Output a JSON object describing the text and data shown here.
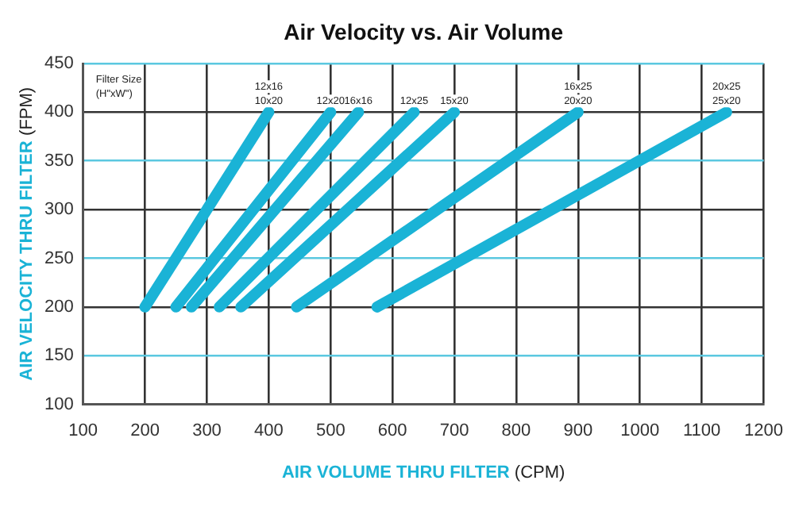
{
  "chart_data": {
    "type": "line",
    "title": "Air Velocity vs. Air Volume",
    "xlabel": "AIR VOLUME THRU FILTER (CPM)",
    "ylabel": "AIR VELOCITY THRU FILTER (FPM)",
    "xlim": [
      100,
      1200
    ],
    "xticks": [
      100,
      200,
      300,
      400,
      500,
      600,
      700,
      800,
      900,
      1000,
      1100,
      1200
    ],
    "ylim": [
      100,
      450
    ],
    "yticks": [
      100,
      150,
      200,
      250,
      300,
      350,
      400,
      450
    ],
    "grid": true,
    "legend": false,
    "marker": "none",
    "line_style": "solid",
    "annotations": [
      "Filter Size (H\"xW\")"
    ],
    "series": [
      {
        "name": "12x16 10x20",
        "color": "#1ab3d6",
        "x": [
          200,
          400
        ],
        "values": [
          200,
          400
        ]
      },
      {
        "name": "12x20",
        "color": "#1ab3d6",
        "x": [
          250,
          500
        ],
        "values": [
          200,
          400
        ]
      },
      {
        "name": "16x16",
        "color": "#1ab3d6",
        "x": [
          275,
          545
        ],
        "values": [
          200,
          400
        ]
      },
      {
        "name": "12x25",
        "color": "#1ab3d6",
        "x": [
          320,
          635
        ],
        "values": [
          200,
          400
        ]
      },
      {
        "name": "15x20",
        "color": "#1ab3d6",
        "x": [
          355,
          700
        ],
        "values": [
          200,
          400
        ]
      },
      {
        "name": "16x25 20x20",
        "color": "#1ab3d6",
        "x": [
          445,
          900
        ],
        "values": [
          200,
          400
        ]
      },
      {
        "name": "20x25 25x20",
        "color": "#1ab3d6",
        "x": [
          575,
          1140
        ],
        "values": [
          200,
          400
        ]
      }
    ]
  }
}
